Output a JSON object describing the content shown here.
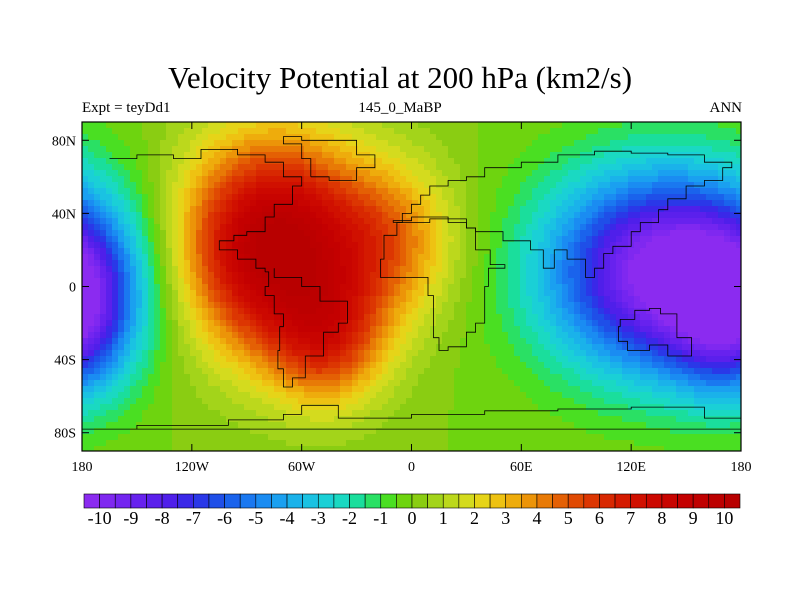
{
  "chart_data": {
    "type": "heatmap",
    "title": "Velocity Potential at 200 hPa (km2/s)",
    "subtitle_left": "Expt = teyDd1",
    "subtitle_center": "145_0_MaBP",
    "subtitle_right": "ANN",
    "x_range": [
      -180,
      180
    ],
    "y_range": [
      -90,
      90
    ],
    "x_ticks": [
      {
        "value": -180,
        "label": "180"
      },
      {
        "value": -120,
        "label": "120W"
      },
      {
        "value": -60,
        "label": "60W"
      },
      {
        "value": 0,
        "label": "0"
      },
      {
        "value": 60,
        "label": "60E"
      },
      {
        "value": 120,
        "label": "120E"
      },
      {
        "value": 180,
        "label": "180"
      }
    ],
    "y_ticks": [
      {
        "value": 80,
        "label": "80N"
      },
      {
        "value": 40,
        "label": "40N"
      },
      {
        "value": 0,
        "label": "0"
      },
      {
        "value": -40,
        "label": "40S"
      },
      {
        "value": -80,
        "label": "80S"
      }
    ],
    "colorbar": {
      "min": -10.5,
      "max": 10.5,
      "step": 0.5,
      "labels": [
        "-10",
        "-9",
        "-8",
        "-7",
        "-6",
        "-5",
        "-4",
        "-3",
        "-2",
        "-1",
        "0",
        "1",
        "2",
        "3",
        "4",
        "5",
        "6",
        "7",
        "8",
        "9",
        "10"
      ],
      "colors": [
        "#8b2bf0",
        "#7f28f0",
        "#7325f0",
        "#6722ee",
        "#5b20ec",
        "#4f1fea",
        "#3a28e8",
        "#2a38e8",
        "#1f4fe8",
        "#1a63ec",
        "#1a78f0",
        "#1a8cf2",
        "#1aa0f0",
        "#1ab2ea",
        "#1ac2e2",
        "#1ad0d6",
        "#1ad9c2",
        "#1ade9c",
        "#2ae064",
        "#4adf22",
        "#6ed40f",
        "#8acd12",
        "#a3d41a",
        "#bcd81c",
        "#d4db1e",
        "#e6d418",
        "#eec212",
        "#eeac0c",
        "#ec9408",
        "#e87a06",
        "#e46004",
        "#e04a03",
        "#dc3602",
        "#d82801",
        "#d41a00",
        "#d01000",
        "#cc0800",
        "#c80400",
        "#c40000",
        "#c00000",
        "#bc0000",
        "#b80000"
      ]
    },
    "field_centers": [
      {
        "lon": -75,
        "lat": 22,
        "amplitude": 10.5,
        "sigma_lon": 35,
        "sigma_lat": 40
      },
      {
        "lon": -45,
        "lat": -30,
        "amplitude": 4.5,
        "sigma_lon": 22,
        "sigma_lat": 25
      },
      {
        "lon": -10,
        "lat": 25,
        "amplitude": 3.5,
        "sigma_lon": 25,
        "sigma_lat": 30
      },
      {
        "lon": 140,
        "lat": 8,
        "amplitude": -11,
        "sigma_lon": 45,
        "sigma_lat": 38
      },
      {
        "lon": -185,
        "lat": -15,
        "amplitude": -6,
        "sigma_lon": 22,
        "sigma_lat": 30
      }
    ]
  }
}
